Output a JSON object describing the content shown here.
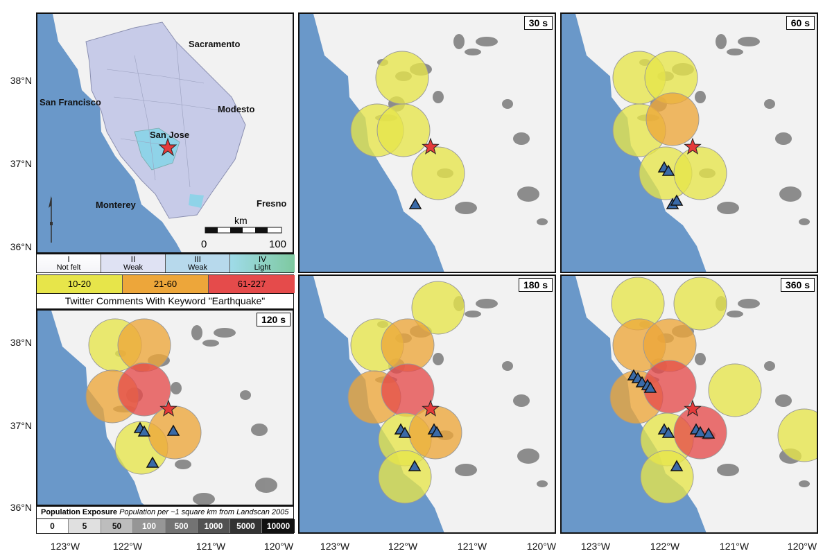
{
  "map": {
    "colors": {
      "ocean": "#6a98c9",
      "land": "#f2f2f2",
      "urban": "#3a3a3a",
      "low": "#e7e54a",
      "mid": "#eda63a",
      "high": "#e54b4b",
      "quake_star": "#e53a3a",
      "intensity_weak": "#c7cbe8",
      "intensity_light": "#8fd3e8"
    },
    "latitude_ticks": [
      "38°N",
      "37°N",
      "36°N"
    ],
    "longitude_ticks": [
      "123°W",
      "122°W",
      "121°W",
      "120°W"
    ]
  },
  "panels": [
    {
      "name": "overview",
      "time_label": ""
    },
    {
      "name": "t30",
      "time_label": "30 s"
    },
    {
      "name": "t60",
      "time_label": "60 s"
    },
    {
      "name": "t120",
      "time_label": "120 s"
    },
    {
      "name": "t180",
      "time_label": "180 s"
    },
    {
      "name": "t360",
      "time_label": "360 s"
    }
  ],
  "cities": [
    {
      "name": "Sacramento"
    },
    {
      "name": "San Francisco"
    },
    {
      "name": "Modesto"
    },
    {
      "name": "San Jose"
    },
    {
      "name": "Monterey"
    },
    {
      "name": "Fresno"
    }
  ],
  "scale_bar": {
    "unit": "km",
    "start": "0",
    "end": "100"
  },
  "intensity_legend": [
    {
      "roman": "I",
      "label": "Not felt",
      "color": "#ffffff"
    },
    {
      "roman": "II",
      "label": "Weak",
      "color": "#c7cbe8"
    },
    {
      "roman": "III",
      "label": "Weak",
      "color": "#a8d8ea"
    },
    {
      "roman": "IV",
      "label": "Light",
      "color": "#8fd3e8"
    }
  ],
  "twitter_legend": {
    "title": "Twitter Comments With Keyword \"Earthquake\"",
    "bins": [
      {
        "label": "10-20",
        "color": "#e7e54a"
      },
      {
        "label": "21-60",
        "color": "#eda63a"
      },
      {
        "label": "61-227",
        "color": "#e54b4b"
      }
    ]
  },
  "population_legend": {
    "title": "Population Exposure",
    "subtitle": "Population per ~1 square km from Landscan 2005",
    "bins": [
      {
        "label": "0",
        "color": "#ffffff",
        "text": "#111111"
      },
      {
        "label": "5",
        "color": "#e0e0e0",
        "text": "#111111"
      },
      {
        "label": "50",
        "color": "#bdbdbd",
        "text": "#111111"
      },
      {
        "label": "100",
        "color": "#969696",
        "text": "#ffffff"
      },
      {
        "label": "500",
        "color": "#737373",
        "text": "#ffffff"
      },
      {
        "label": "1000",
        "color": "#525252",
        "text": "#ffffff"
      },
      {
        "label": "5000",
        "color": "#333333",
        "text": "#ffffff"
      },
      {
        "label": "10000",
        "color": "#111111",
        "text": "#ffffff"
      }
    ]
  }
}
